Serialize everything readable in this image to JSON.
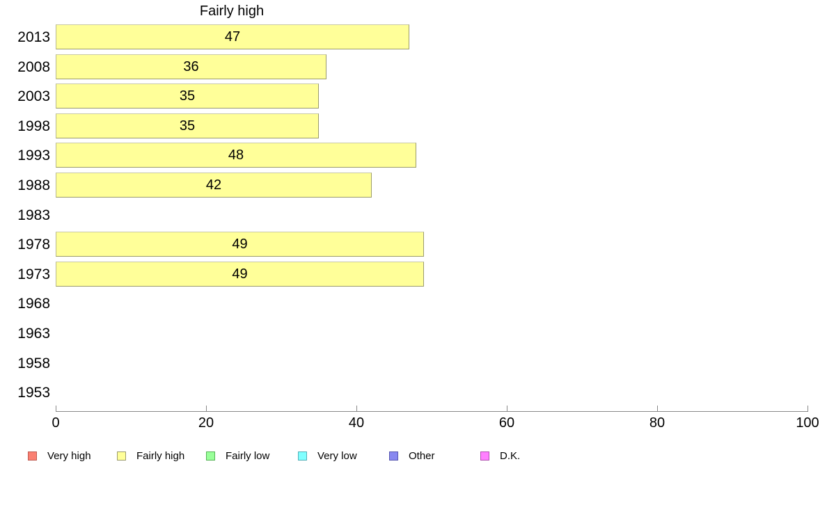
{
  "chart_data": {
    "type": "bar",
    "orientation": "horizontal",
    "title": "Fairly high",
    "categories": [
      "2013",
      "2008",
      "2003",
      "1998",
      "1993",
      "1988",
      "1983",
      "1978",
      "1973",
      "1968",
      "1963",
      "1958",
      "1953"
    ],
    "values": [
      47,
      36,
      35,
      35,
      48,
      42,
      null,
      49,
      49,
      null,
      null,
      null,
      null
    ],
    "value_labels_shown": true,
    "xlabel": "",
    "ylabel": "",
    "xlim": [
      0,
      100
    ],
    "x_ticks": [
      0,
      20,
      40,
      60,
      80,
      100
    ],
    "grid": false,
    "bar_fill_color": "#ffff99",
    "bar_border_color": "#9b9b6b",
    "axis_color": "#888888",
    "text_color": "#000000",
    "legend_position": "bottom",
    "legend": [
      {
        "label": "Very high",
        "color": "#fa8072",
        "border": "#c05a50"
      },
      {
        "label": "Fairly high",
        "color": "#ffff99",
        "border": "#9b9b6b"
      },
      {
        "label": "Fairly low",
        "color": "#99ff99",
        "border": "#55b355"
      },
      {
        "label": "Very low",
        "color": "#80ffff",
        "border": "#50b0b8"
      },
      {
        "label": "Other",
        "color": "#8888f0",
        "border": "#5555b0"
      },
      {
        "label": "D.K.",
        "color": "#ff80ff",
        "border": "#b050b0"
      }
    ]
  }
}
